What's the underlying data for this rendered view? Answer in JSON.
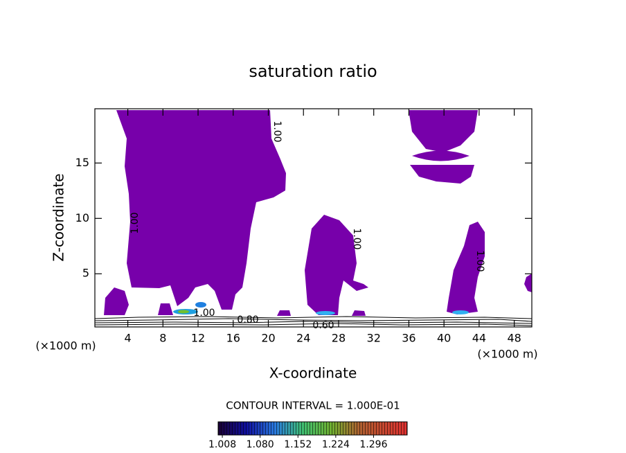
{
  "chart_data": {
    "type": "contour",
    "title": "saturation ratio",
    "x_label": "X-coordinate",
    "y_label": "Z-coordinate",
    "x_unit": "(×1000 m)",
    "contour_interval": "CONTOUR INTERVAL = 1.000E-01",
    "xlim": [
      0.25,
      50
    ],
    "ylim": [
      0.2,
      19.9
    ],
    "xticks": [
      4,
      8,
      12,
      16,
      20,
      24,
      28,
      32,
      36,
      40,
      44,
      48
    ],
    "yticks": [
      5,
      10,
      15
    ],
    "contour_labels": [
      "1.00",
      "1.00",
      "1.00",
      "1.00",
      "1.00",
      "0.80",
      "0.60"
    ],
    "fill_color": "#7700aa",
    "colorbar": {
      "lim": [
        1.0,
        1.36
      ],
      "ticks": [
        1.008,
        {
          "value": 1.08,
          "label": "1.080"
        },
        1.152,
        1.224,
        1.296
      ]
    }
  }
}
